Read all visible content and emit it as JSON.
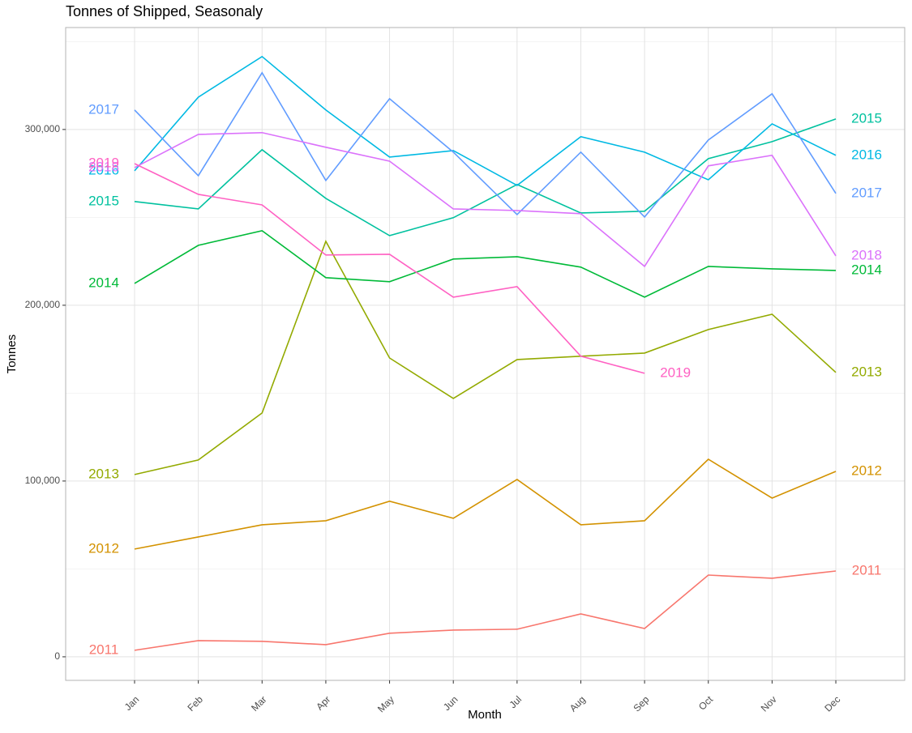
{
  "chart_data": {
    "type": "line",
    "title": "Tonnes of Shipped, Seasonaly",
    "x_label": "Month",
    "y_label": "Tonnes",
    "categories": [
      "Jan",
      "Feb",
      "Mar",
      "Apr",
      "May",
      "Jun",
      "Jul",
      "Aug",
      "Sep",
      "Oct",
      "Nov",
      "Dec"
    ],
    "ylim": [
      -13400,
      358000
    ],
    "yticks": [
      0,
      {
        "value": 100000,
        "label": "100,000"
      },
      {
        "value": 200000,
        "label": "200,000"
      },
      {
        "value": 300000,
        "label": "300,000"
      }
    ],
    "grid": true,
    "series": [
      {
        "name": "2011",
        "color": "#F8766D",
        "values": [
          3700,
          9200,
          8800,
          6900,
          13400,
          15200,
          15700,
          24400,
          16100,
          46500,
          44700,
          48800
        ]
      },
      {
        "name": "2012",
        "color": "#D39200",
        "values": [
          61300,
          68200,
          75100,
          77400,
          88500,
          78800,
          100900,
          75100,
          77400,
          112400,
          90300,
          105500
        ]
      },
      {
        "name": "2013",
        "color": "#93AA00",
        "values": [
          103700,
          112000,
          138700,
          236400,
          170000,
          147000,
          169100,
          171000,
          172800,
          186200,
          194900,
          161800
        ]
      },
      {
        "name": "2014",
        "color": "#00BA38",
        "values": [
          212400,
          234100,
          242400,
          215700,
          213400,
          226300,
          227600,
          221700,
          204600,
          222100,
          220700,
          219800
        ]
      },
      {
        "name": "2015",
        "color": "#00C19F",
        "values": [
          259000,
          254800,
          288500,
          260800,
          239600,
          249800,
          268700,
          252500,
          253500,
          283400,
          293100,
          306000
        ]
      },
      {
        "name": "2016",
        "color": "#00B9E3",
        "values": [
          276500,
          318400,
          341500,
          311100,
          284300,
          288000,
          268200,
          295900,
          287100,
          271400,
          303200,
          285300
        ]
      },
      {
        "name": "2017",
        "color": "#619CFF",
        "values": [
          311100,
          273700,
          332300,
          271000,
          317500,
          287100,
          251600,
          287100,
          250200,
          294000,
          320300,
          263600
        ]
      },
      {
        "name": "2018",
        "color": "#DB72FB",
        "values": [
          278300,
          297200,
          298200,
          289900,
          282000,
          254800,
          253900,
          252100,
          222100,
          279300,
          285300,
          228100
        ]
      },
      {
        "name": "2019",
        "color": "#FF61C3",
        "values": [
          280600,
          263100,
          257100,
          228600,
          229000,
          204600,
          210600,
          171000,
          161300,
          null,
          null,
          null
        ]
      }
    ]
  }
}
